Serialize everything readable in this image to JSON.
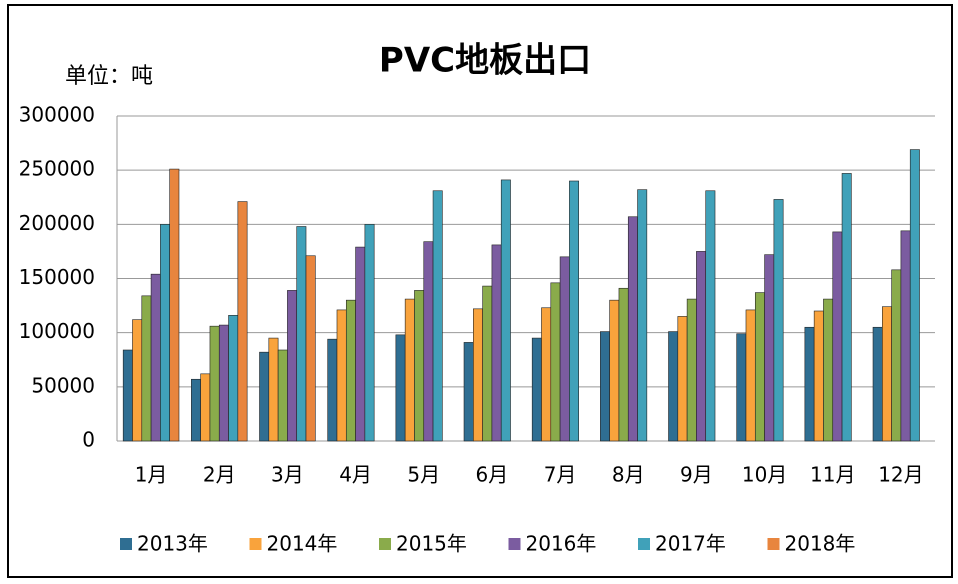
{
  "chart_data": {
    "type": "bar",
    "title": "PVC地板出口",
    "unit_label": "单位：吨",
    "categories": [
      "1月",
      "2月",
      "3月",
      "4月",
      "5月",
      "6月",
      "7月",
      "8月",
      "9月",
      "10月",
      "11月",
      "12月"
    ],
    "series": [
      {
        "name": "2013年",
        "color": "#2f6e92",
        "values": [
          84000,
          57000,
          82000,
          94000,
          98000,
          91000,
          95000,
          101000,
          101000,
          99000,
          105000,
          105000
        ]
      },
      {
        "name": "2014年",
        "color": "#f9a33c",
        "values": [
          112000,
          62000,
          95000,
          121000,
          131000,
          122000,
          123000,
          130000,
          115000,
          121000,
          120000,
          124000
        ]
      },
      {
        "name": "2015年",
        "color": "#8aab4b",
        "values": [
          134000,
          106000,
          84000,
          130000,
          139000,
          143000,
          146000,
          141000,
          131000,
          137000,
          131000,
          158000
        ]
      },
      {
        "name": "2016年",
        "color": "#7b5ca0",
        "values": [
          154000,
          107000,
          139000,
          179000,
          184000,
          181000,
          170000,
          207000,
          175000,
          172000,
          193000,
          194000
        ]
      },
      {
        "name": "2017年",
        "color": "#40a1b9",
        "values": [
          200000,
          116000,
          198000,
          200000,
          231000,
          241000,
          240000,
          232000,
          231000,
          223000,
          247000,
          269000
        ]
      },
      {
        "name": "2018年",
        "color": "#e8853e",
        "values": [
          251000,
          221000,
          171000,
          null,
          null,
          null,
          null,
          null,
          null,
          null,
          null,
          null
        ]
      }
    ],
    "ylim": [
      0,
      300000
    ],
    "yticks": [
      0,
      50000,
      100000,
      150000,
      200000,
      250000,
      300000
    ],
    "grid": true
  }
}
